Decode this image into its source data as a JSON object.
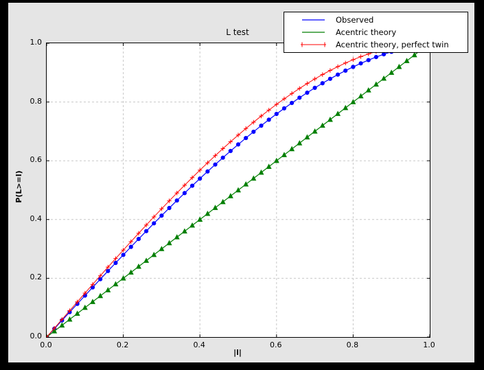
{
  "window": {
    "outer_background": "#000000",
    "figure_background": "#e5e5e5",
    "plot_background": "#ffffff",
    "grid_color": "#c7c7c7",
    "axis_color": "#000000"
  },
  "chart_data": {
    "type": "line",
    "title": "L test",
    "xlabel": "|l|",
    "ylabel": "P(L>=l)",
    "xlim": [
      0.0,
      1.0
    ],
    "ylim": [
      0.0,
      1.0
    ],
    "x_ticks": [
      0.0,
      0.2,
      0.4,
      0.6,
      0.8,
      1.0
    ],
    "y_ticks": [
      0.0,
      0.2,
      0.4,
      0.6,
      0.8,
      1.0
    ],
    "grid": "dashed gray lines at 0.2 intervals, ticks inward on all four sides",
    "legend_position": "upper right, opaque box overlapping top of plot",
    "x": [
      0.0,
      0.02,
      0.04,
      0.06,
      0.08,
      0.1,
      0.12,
      0.14,
      0.16,
      0.18,
      0.2,
      0.22,
      0.24,
      0.26,
      0.28,
      0.3,
      0.32,
      0.34,
      0.36,
      0.38,
      0.4,
      0.42,
      0.44,
      0.46,
      0.48,
      0.5,
      0.52,
      0.54,
      0.56,
      0.58,
      0.6,
      0.62,
      0.64,
      0.66,
      0.68,
      0.7,
      0.72,
      0.74,
      0.76,
      0.78,
      0.8,
      0.82,
      0.84,
      0.86,
      0.88,
      0.9,
      0.92,
      0.94,
      0.96,
      0.98,
      1.0
    ],
    "series": [
      {
        "name": "Observed",
        "color": "#0000ff",
        "marker": "circle",
        "line_width": 1.2,
        "values": [
          0,
          0.0283,
          0.0566,
          0.0848,
          0.113,
          0.1411,
          0.1691,
          0.197,
          0.2247,
          0.2523,
          0.2797,
          0.3069,
          0.3339,
          0.3606,
          0.3871,
          0.4133,
          0.4392,
          0.4648,
          0.49,
          0.515,
          0.5394,
          0.5636,
          0.5872,
          0.6105,
          0.6333,
          0.6556,
          0.6774,
          0.6988,
          0.7195,
          0.7397,
          0.7594,
          0.7784,
          0.7968,
          0.8146,
          0.8317,
          0.8482,
          0.8639,
          0.8789,
          0.8932,
          0.9068,
          0.9195,
          0.9315,
          0.9426,
          0.953,
          0.9624,
          0.971,
          0.9786,
          0.9854,
          0.9912,
          0.9961,
          1.0
        ]
      },
      {
        "name": "Acentric theory",
        "color": "#007f00",
        "marker": "triangle",
        "line_width": 1.2,
        "values": [
          0,
          0.02,
          0.04,
          0.06,
          0.08,
          0.1,
          0.12,
          0.14,
          0.16,
          0.18,
          0.2,
          0.22,
          0.24,
          0.26,
          0.28,
          0.3,
          0.32,
          0.34,
          0.36,
          0.38,
          0.4,
          0.42,
          0.44,
          0.46,
          0.48,
          0.5,
          0.52,
          0.54,
          0.56,
          0.58,
          0.6,
          0.62,
          0.64,
          0.66,
          0.68,
          0.7,
          0.72,
          0.74,
          0.76,
          0.78,
          0.8,
          0.82,
          0.84,
          0.86,
          0.88,
          0.9,
          0.92,
          0.94,
          0.96,
          0.98,
          1.0
        ]
      },
      {
        "name": "Acentric theory, perfect twin",
        "color": "#ff0000",
        "marker": "plus",
        "line_width": 1.0,
        "values": [
          0,
          0.03,
          0.06,
          0.0899,
          0.1197,
          0.1495,
          0.1791,
          0.2086,
          0.238,
          0.2671,
          0.296,
          0.3247,
          0.3531,
          0.3812,
          0.409,
          0.4365,
          0.4636,
          0.4903,
          0.5167,
          0.5426,
          0.568,
          0.593,
          0.6174,
          0.6413,
          0.6647,
          0.6875,
          0.7097,
          0.7313,
          0.7522,
          0.7724,
          0.792,
          0.8108,
          0.8289,
          0.8463,
          0.8628,
          0.8785,
          0.8934,
          0.9074,
          0.9205,
          0.9327,
          0.944,
          0.9543,
          0.9636,
          0.972,
          0.9793,
          0.9855,
          0.9907,
          0.9947,
          0.9976,
          0.9994,
          1.0
        ]
      }
    ]
  },
  "legend": {
    "items": [
      {
        "label": "Observed",
        "color": "#0000ff",
        "sample": "plain line"
      },
      {
        "label": "Acentric theory",
        "color": "#007f00",
        "sample": "plain line"
      },
      {
        "label": "Acentric theory, perfect twin",
        "color": "#ff0000",
        "sample": "line with plus markers at ends"
      }
    ]
  }
}
